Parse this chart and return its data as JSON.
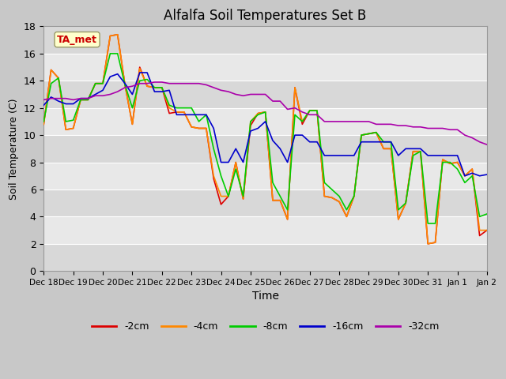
{
  "title": "Alfalfa Soil Temperatures Set B",
  "xlabel": "Time",
  "ylabel": "Soil Temperature (C)",
  "ylim": [
    0,
    18
  ],
  "annotation_text": "TA_met",
  "annotation_color": "#cc0000",
  "annotation_bg": "#ffffcc",
  "legend_entries": [
    "-2cm",
    "-4cm",
    "-8cm",
    "-16cm",
    "-32cm"
  ],
  "line_colors": [
    "#dd0000",
    "#ff8800",
    "#00cc00",
    "#0000cc",
    "#aa00aa"
  ],
  "x_tick_labels": [
    "Dec 18",
    "Dec 19",
    "Dec 20",
    "Dec 21",
    "Dec 22",
    "Dec 23",
    "Dec 24",
    "Dec 25",
    "Dec 26",
    "Dec 27",
    "Dec 28",
    "Dec 29",
    "Dec 30",
    "Dec 31",
    "Jan 1",
    "Jan 2"
  ],
  "background_color": "#c8c8c8",
  "plot_bg_light": "#e0e0e0",
  "plot_bg_dark": "#d0d0d0",
  "grid_color": "#ffffff",
  "series_2cm": [
    10.8,
    14.8,
    14.2,
    10.4,
    10.5,
    12.6,
    12.6,
    13.8,
    13.8,
    17.3,
    17.4,
    13.7,
    10.8,
    15.0,
    13.6,
    13.5,
    13.5,
    11.6,
    11.7,
    11.7,
    10.6,
    10.5,
    10.5,
    6.8,
    4.9,
    5.5,
    8.0,
    5.3,
    10.7,
    11.6,
    11.7,
    5.2,
    5.2,
    3.8,
    13.5,
    10.8,
    11.8,
    11.8,
    5.5,
    5.4,
    5.1,
    4.0,
    5.5,
    10.0,
    10.1,
    10.2,
    9.0,
    9.0,
    3.8,
    5.0,
    8.8,
    8.8,
    2.0,
    2.1,
    8.2,
    7.9,
    8.0,
    7.0,
    7.5,
    2.6,
    3.0
  ],
  "series_4cm": [
    10.8,
    14.8,
    14.2,
    10.4,
    10.5,
    12.6,
    12.6,
    13.8,
    13.8,
    17.3,
    17.4,
    13.7,
    10.8,
    14.9,
    13.6,
    13.5,
    13.5,
    12.0,
    11.7,
    11.7,
    10.6,
    10.5,
    10.5,
    7.0,
    5.5,
    5.5,
    8.0,
    5.3,
    11.0,
    11.6,
    11.7,
    5.2,
    5.2,
    3.8,
    13.5,
    11.0,
    11.8,
    11.8,
    5.5,
    5.4,
    5.1,
    4.0,
    5.5,
    10.0,
    10.1,
    10.2,
    9.0,
    9.0,
    3.8,
    5.0,
    8.8,
    8.8,
    2.0,
    2.1,
    8.2,
    7.9,
    8.0,
    7.0,
    7.5,
    3.0,
    3.0
  ],
  "series_8cm": [
    11.0,
    13.8,
    14.2,
    11.0,
    11.1,
    12.6,
    12.6,
    13.8,
    13.8,
    16.0,
    16.0,
    13.7,
    12.0,
    14.0,
    14.1,
    13.5,
    13.5,
    12.2,
    12.0,
    12.0,
    12.0,
    11.0,
    11.5,
    9.0,
    7.0,
    5.5,
    7.5,
    5.5,
    11.0,
    11.5,
    11.7,
    6.5,
    5.5,
    4.5,
    11.5,
    11.0,
    11.8,
    11.8,
    6.5,
    6.0,
    5.5,
    4.5,
    5.5,
    10.0,
    10.1,
    10.2,
    9.5,
    9.5,
    4.5,
    5.0,
    8.5,
    8.8,
    3.5,
    3.5,
    8.0,
    8.0,
    7.5,
    6.5,
    7.0,
    4.0,
    4.2
  ],
  "series_16cm": [
    12.2,
    12.8,
    12.5,
    12.3,
    12.3,
    12.7,
    12.7,
    13.0,
    13.3,
    14.3,
    14.5,
    13.8,
    13.0,
    14.6,
    14.6,
    13.2,
    13.2,
    13.3,
    11.5,
    11.5,
    11.5,
    11.5,
    11.5,
    10.5,
    8.0,
    8.0,
    9.0,
    8.0,
    10.3,
    10.5,
    11.0,
    9.6,
    9.0,
    8.0,
    10.0,
    10.0,
    9.5,
    9.5,
    8.5,
    8.5,
    8.5,
    8.5,
    8.5,
    9.5,
    9.5,
    9.5,
    9.5,
    9.5,
    8.5,
    9.0,
    9.0,
    9.0,
    8.5,
    8.5,
    8.5,
    8.5,
    8.5,
    7.0,
    7.2,
    7.0,
    7.1
  ],
  "series_32cm": [
    12.6,
    12.7,
    12.7,
    12.7,
    12.6,
    12.7,
    12.7,
    12.9,
    12.9,
    13.0,
    13.2,
    13.5,
    13.6,
    13.8,
    13.8,
    13.9,
    13.9,
    13.8,
    13.8,
    13.8,
    13.8,
    13.8,
    13.7,
    13.5,
    13.3,
    13.2,
    13.0,
    12.9,
    13.0,
    13.0,
    13.0,
    12.5,
    12.5,
    11.9,
    12.0,
    11.7,
    11.5,
    11.5,
    11.0,
    11.0,
    11.0,
    11.0,
    11.0,
    11.0,
    11.0,
    10.8,
    10.8,
    10.8,
    10.7,
    10.7,
    10.6,
    10.6,
    10.5,
    10.5,
    10.5,
    10.4,
    10.4,
    10.0,
    9.8,
    9.5,
    9.3
  ]
}
